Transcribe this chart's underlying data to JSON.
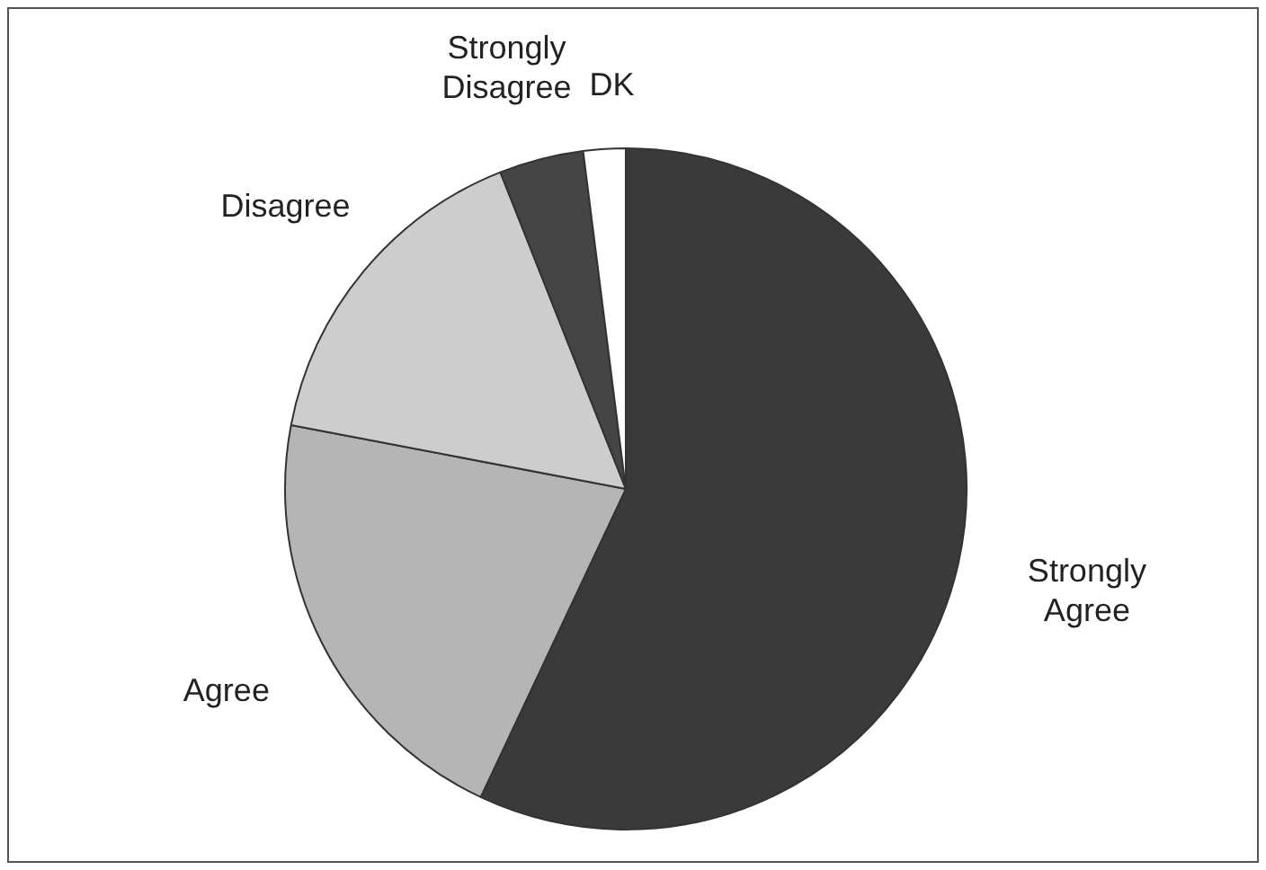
{
  "chart_data": {
    "type": "pie",
    "categories": [
      "Strongly Agree",
      "Agree",
      "Disagree",
      "Strongly Disagree",
      "DK"
    ],
    "values": [
      57,
      21,
      16,
      4,
      2
    ],
    "colors": [
      "#3a3a3a",
      "#b5b5b5",
      "#cdcdcd",
      "#454545",
      "#ffffff"
    ],
    "legend": false
  }
}
